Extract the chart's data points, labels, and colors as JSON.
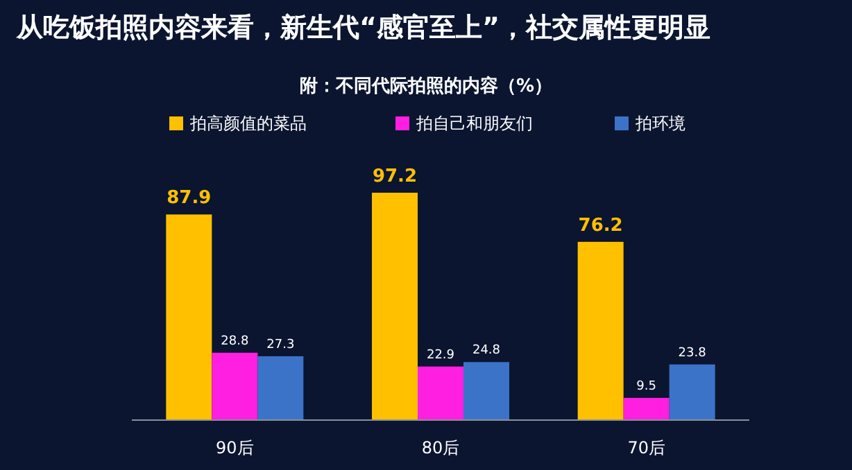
{
  "chart_data": {
    "type": "bar",
    "title": "从吃饭拍照内容来看，新生代“感官至上”，社交属性更明显",
    "subtitle": "附：不同代际拍照的内容（%）",
    "categories": [
      "90后",
      "80后",
      "70后"
    ],
    "series": [
      {
        "name": "拍高颜值的菜品",
        "color": "#ffc000",
        "values": [
          87.9,
          97.2,
          76.2
        ]
      },
      {
        "name": "拍自己和朋友们",
        "color": "#ff1fe0",
        "values": [
          28.8,
          22.9,
          9.5
        ]
      },
      {
        "name": "拍环境",
        "color": "#3b73c9",
        "values": [
          27.3,
          24.8,
          23.8
        ]
      }
    ],
    "data_labels": true,
    "legend": "top"
  }
}
